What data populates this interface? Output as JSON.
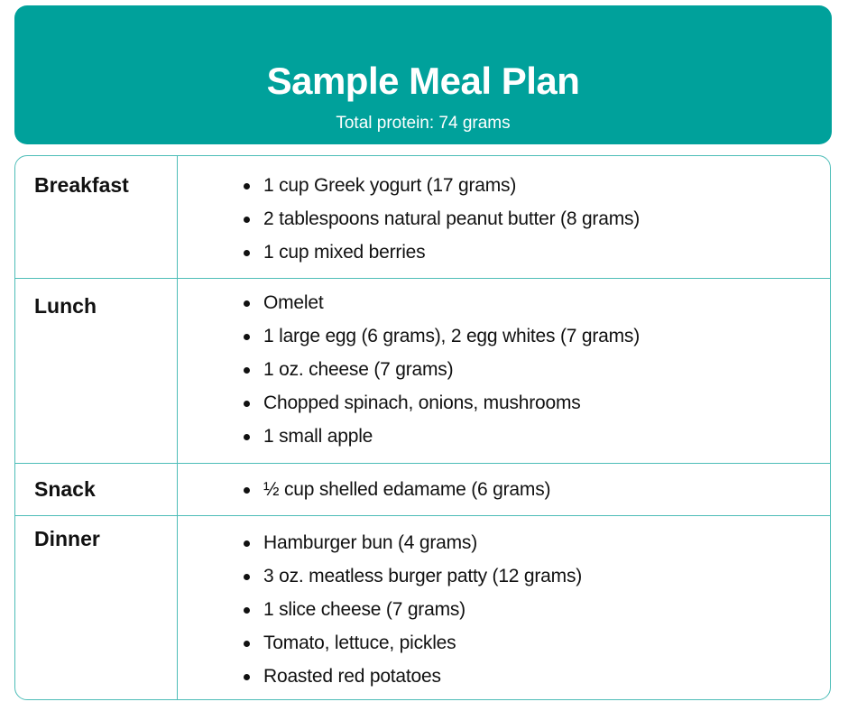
{
  "header": {
    "title": "Sample Meal Plan",
    "subtitle": "Total protein: 74 grams"
  },
  "colors": {
    "accent": "#00A19B",
    "border": "#4DBDB8"
  },
  "meals": [
    {
      "label": "Breakfast",
      "items": [
        "1 cup Greek yogurt (17 grams)",
        "2 tablespoons natural peanut butter (8 grams)",
        "1 cup mixed berries"
      ]
    },
    {
      "label": "Lunch",
      "items": [
        "Omelet",
        "1 large egg (6 grams), 2 egg whites (7 grams)",
        "1 oz. cheese (7 grams)",
        "Chopped spinach, onions, mushrooms",
        "1 small apple"
      ]
    },
    {
      "label": "Snack",
      "items": [
        "½ cup shelled edamame (6 grams)"
      ]
    },
    {
      "label": "Dinner",
      "items": [
        "Hamburger bun (4 grams)",
        "3 oz. meatless burger patty (12 grams)",
        "1 slice cheese (7 grams)",
        "Tomato, lettuce, pickles",
        "Roasted red potatoes"
      ]
    }
  ]
}
